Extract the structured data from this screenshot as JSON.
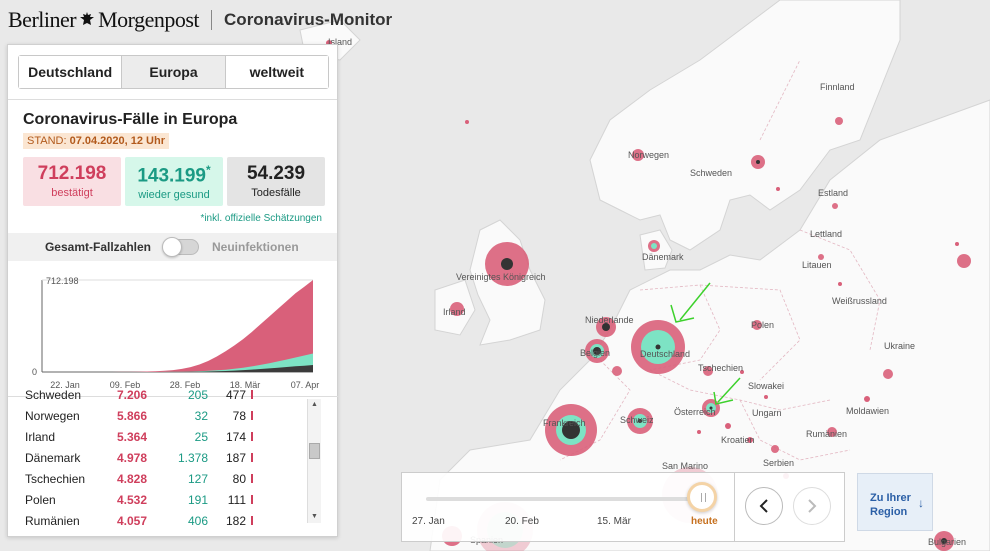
{
  "header": {
    "brand_part1": "Berliner",
    "brand_part2": "Morgenpost",
    "title": "Coronavirus-Monitor"
  },
  "tabs": [
    {
      "label": "Deutschland",
      "active": false
    },
    {
      "label": "Europa",
      "active": true
    },
    {
      "label": "weltweit",
      "active": false
    }
  ],
  "panel": {
    "title": "Coronavirus-Fälle in Europa",
    "stand_label": "STAND:",
    "stand_value": "07.04.2020, 12 Uhr",
    "confirmed": {
      "value": "712.198",
      "label": "bestätigt"
    },
    "recovered": {
      "value": "143.199",
      "asterisk": "*",
      "label": "wieder gesund"
    },
    "deaths": {
      "value": "54.239",
      "label": "Todesfälle"
    },
    "note": "*inkl. offizielle Schätzungen",
    "toggle_left": "Gesamt-Fallzahlen",
    "toggle_right": "Neuinfektionen"
  },
  "chart_data": {
    "type": "area",
    "y_max_label": "712.198",
    "y_min_label": "0",
    "ylim": [
      0,
      712198
    ],
    "x_ticks": [
      "22. Jan",
      "09. Feb",
      "28. Feb",
      "18. Mär",
      "07. Apr"
    ],
    "series": [
      {
        "name": "bestätigt",
        "color": "#d9607a",
        "values": [
          0,
          0,
          0,
          0,
          0,
          10,
          30,
          100,
          200,
          400,
          900,
          1800,
          3500,
          6000,
          9500,
          15000,
          24000,
          38000,
          58000,
          85000,
          120000,
          160000,
          205000,
          255000,
          310000,
          370000,
          430000,
          490000,
          550000,
          610000,
          660000,
          712198
        ]
      },
      {
        "name": "wieder gesund",
        "color": "#7de3c4",
        "values": [
          0,
          0,
          0,
          0,
          0,
          0,
          0,
          0,
          0,
          0,
          0,
          0,
          100,
          300,
          700,
          1500,
          2500,
          4000,
          6000,
          9000,
          13000,
          18000,
          25000,
          33000,
          43000,
          55000,
          68000,
          82000,
          97000,
          112000,
          128000,
          143199
        ]
      },
      {
        "name": "Todesfälle",
        "color": "#3b3b3b",
        "values": [
          0,
          0,
          0,
          0,
          0,
          0,
          0,
          0,
          0,
          0,
          0,
          20,
          60,
          150,
          300,
          600,
          1000,
          1700,
          2700,
          4000,
          5800,
          8000,
          11000,
          14500,
          18500,
          23000,
          28000,
          33000,
          38500,
          44000,
          49000,
          54239
        ]
      }
    ]
  },
  "table": {
    "rows": [
      {
        "name": "Schweden",
        "confirmed": "7.206",
        "recovered": "205",
        "deaths": "477",
        "bar": 0.02
      },
      {
        "name": "Norwegen",
        "confirmed": "5.866",
        "recovered": "32",
        "deaths": "78",
        "bar": 0.02
      },
      {
        "name": "Irland",
        "confirmed": "5.364",
        "recovered": "25",
        "deaths": "174",
        "bar": 0.02
      },
      {
        "name": "Dänemark",
        "confirmed": "4.978",
        "recovered": "1.378",
        "deaths": "187",
        "bar": 0.015
      },
      {
        "name": "Tschechien",
        "confirmed": "4.828",
        "recovered": "127",
        "deaths": "80",
        "bar": 0.015
      },
      {
        "name": "Polen",
        "confirmed": "4.532",
        "recovered": "191",
        "deaths": "111",
        "bar": 0.015
      },
      {
        "name": "Rumänien",
        "confirmed": "4.057",
        "recovered": "406",
        "deaths": "182",
        "bar": 0.015
      }
    ]
  },
  "timeline": {
    "labels": [
      "27. Jan",
      "20. Feb",
      "15. Mär",
      "heute"
    ],
    "position": 1.0
  },
  "region_button": {
    "label": "Zu Ihrer Region",
    "arrow": "↓"
  },
  "map": {
    "labels": [
      {
        "id": "island",
        "text": "Island"
      },
      {
        "id": "finnland",
        "text": "Finnland"
      },
      {
        "id": "norwegen",
        "text": "Norwegen"
      },
      {
        "id": "schweden",
        "text": "Schweden"
      },
      {
        "id": "estland",
        "text": "Estland"
      },
      {
        "id": "lettland",
        "text": "Lettland"
      },
      {
        "id": "litauen",
        "text": "Litauen"
      },
      {
        "id": "daenemark",
        "text": "Dänemark"
      },
      {
        "id": "uk",
        "text": "Vereinigtes Königreich"
      },
      {
        "id": "irland",
        "text": "Irland"
      },
      {
        "id": "niederlande",
        "text": "Niederlande"
      },
      {
        "id": "belgien",
        "text": "Belgien"
      },
      {
        "id": "deutschland",
        "text": "Deutschland"
      },
      {
        "id": "polen",
        "text": "Polen"
      },
      {
        "id": "weissrussland",
        "text": "Weißrussland"
      },
      {
        "id": "tschechien",
        "text": "Tschechien"
      },
      {
        "id": "slowakei",
        "text": "Slowakei"
      },
      {
        "id": "ukraine",
        "text": "Ukraine"
      },
      {
        "id": "frankreich",
        "text": "Frankreich"
      },
      {
        "id": "schweiz",
        "text": "Schweiz"
      },
      {
        "id": "oesterreich",
        "text": "Österreich"
      },
      {
        "id": "ungarn",
        "text": "Ungarn"
      },
      {
        "id": "moldawien",
        "text": "Moldawien"
      },
      {
        "id": "rumaenien",
        "text": "Rumänien"
      },
      {
        "id": "kroatien",
        "text": "Kroatien"
      },
      {
        "id": "serbien",
        "text": "Serbien"
      },
      {
        "id": "sanmarino",
        "text": "San Marino"
      },
      {
        "id": "spanien",
        "text": "Spanien"
      },
      {
        "id": "bulgarien",
        "text": "Bulgarien"
      }
    ]
  }
}
